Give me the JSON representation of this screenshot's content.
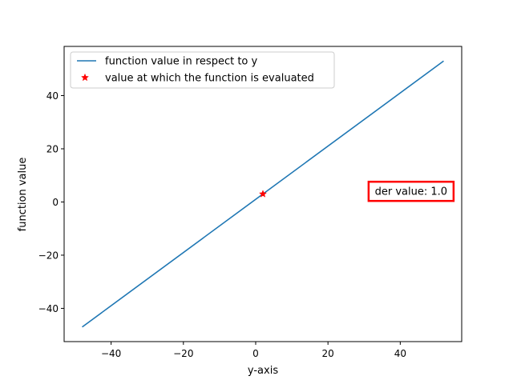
{
  "chart_data": {
    "type": "line",
    "title": "",
    "xlabel": "y-axis",
    "ylabel": "function value",
    "xlim": [
      -53,
      57
    ],
    "ylim": [
      -52.5,
      58.5
    ],
    "xticks": [
      -40,
      -20,
      0,
      20,
      40
    ],
    "yticks": [
      -40,
      -20,
      0,
      20,
      40
    ],
    "xtick_labels": [
      "−40",
      "−20",
      "0",
      "20",
      "40"
    ],
    "ytick_labels": [
      "−40",
      "−20",
      "0",
      "20",
      "40"
    ],
    "grid": false,
    "legend_position": "upper-left",
    "series": [
      {
        "name": "function value in respect to y",
        "kind": "line",
        "color": "#1f77b4",
        "x": [
          -48,
          52
        ],
        "y": [
          -47,
          53
        ]
      },
      {
        "name": "value at which the function is evaluated",
        "kind": "marker",
        "marker": "star",
        "color": "#ff0000",
        "x": [
          2
        ],
        "y": [
          3
        ]
      }
    ],
    "annotation": {
      "text": "der value: 1.0",
      "x": 43,
      "y": 4,
      "border_color": "#ff0000"
    }
  }
}
